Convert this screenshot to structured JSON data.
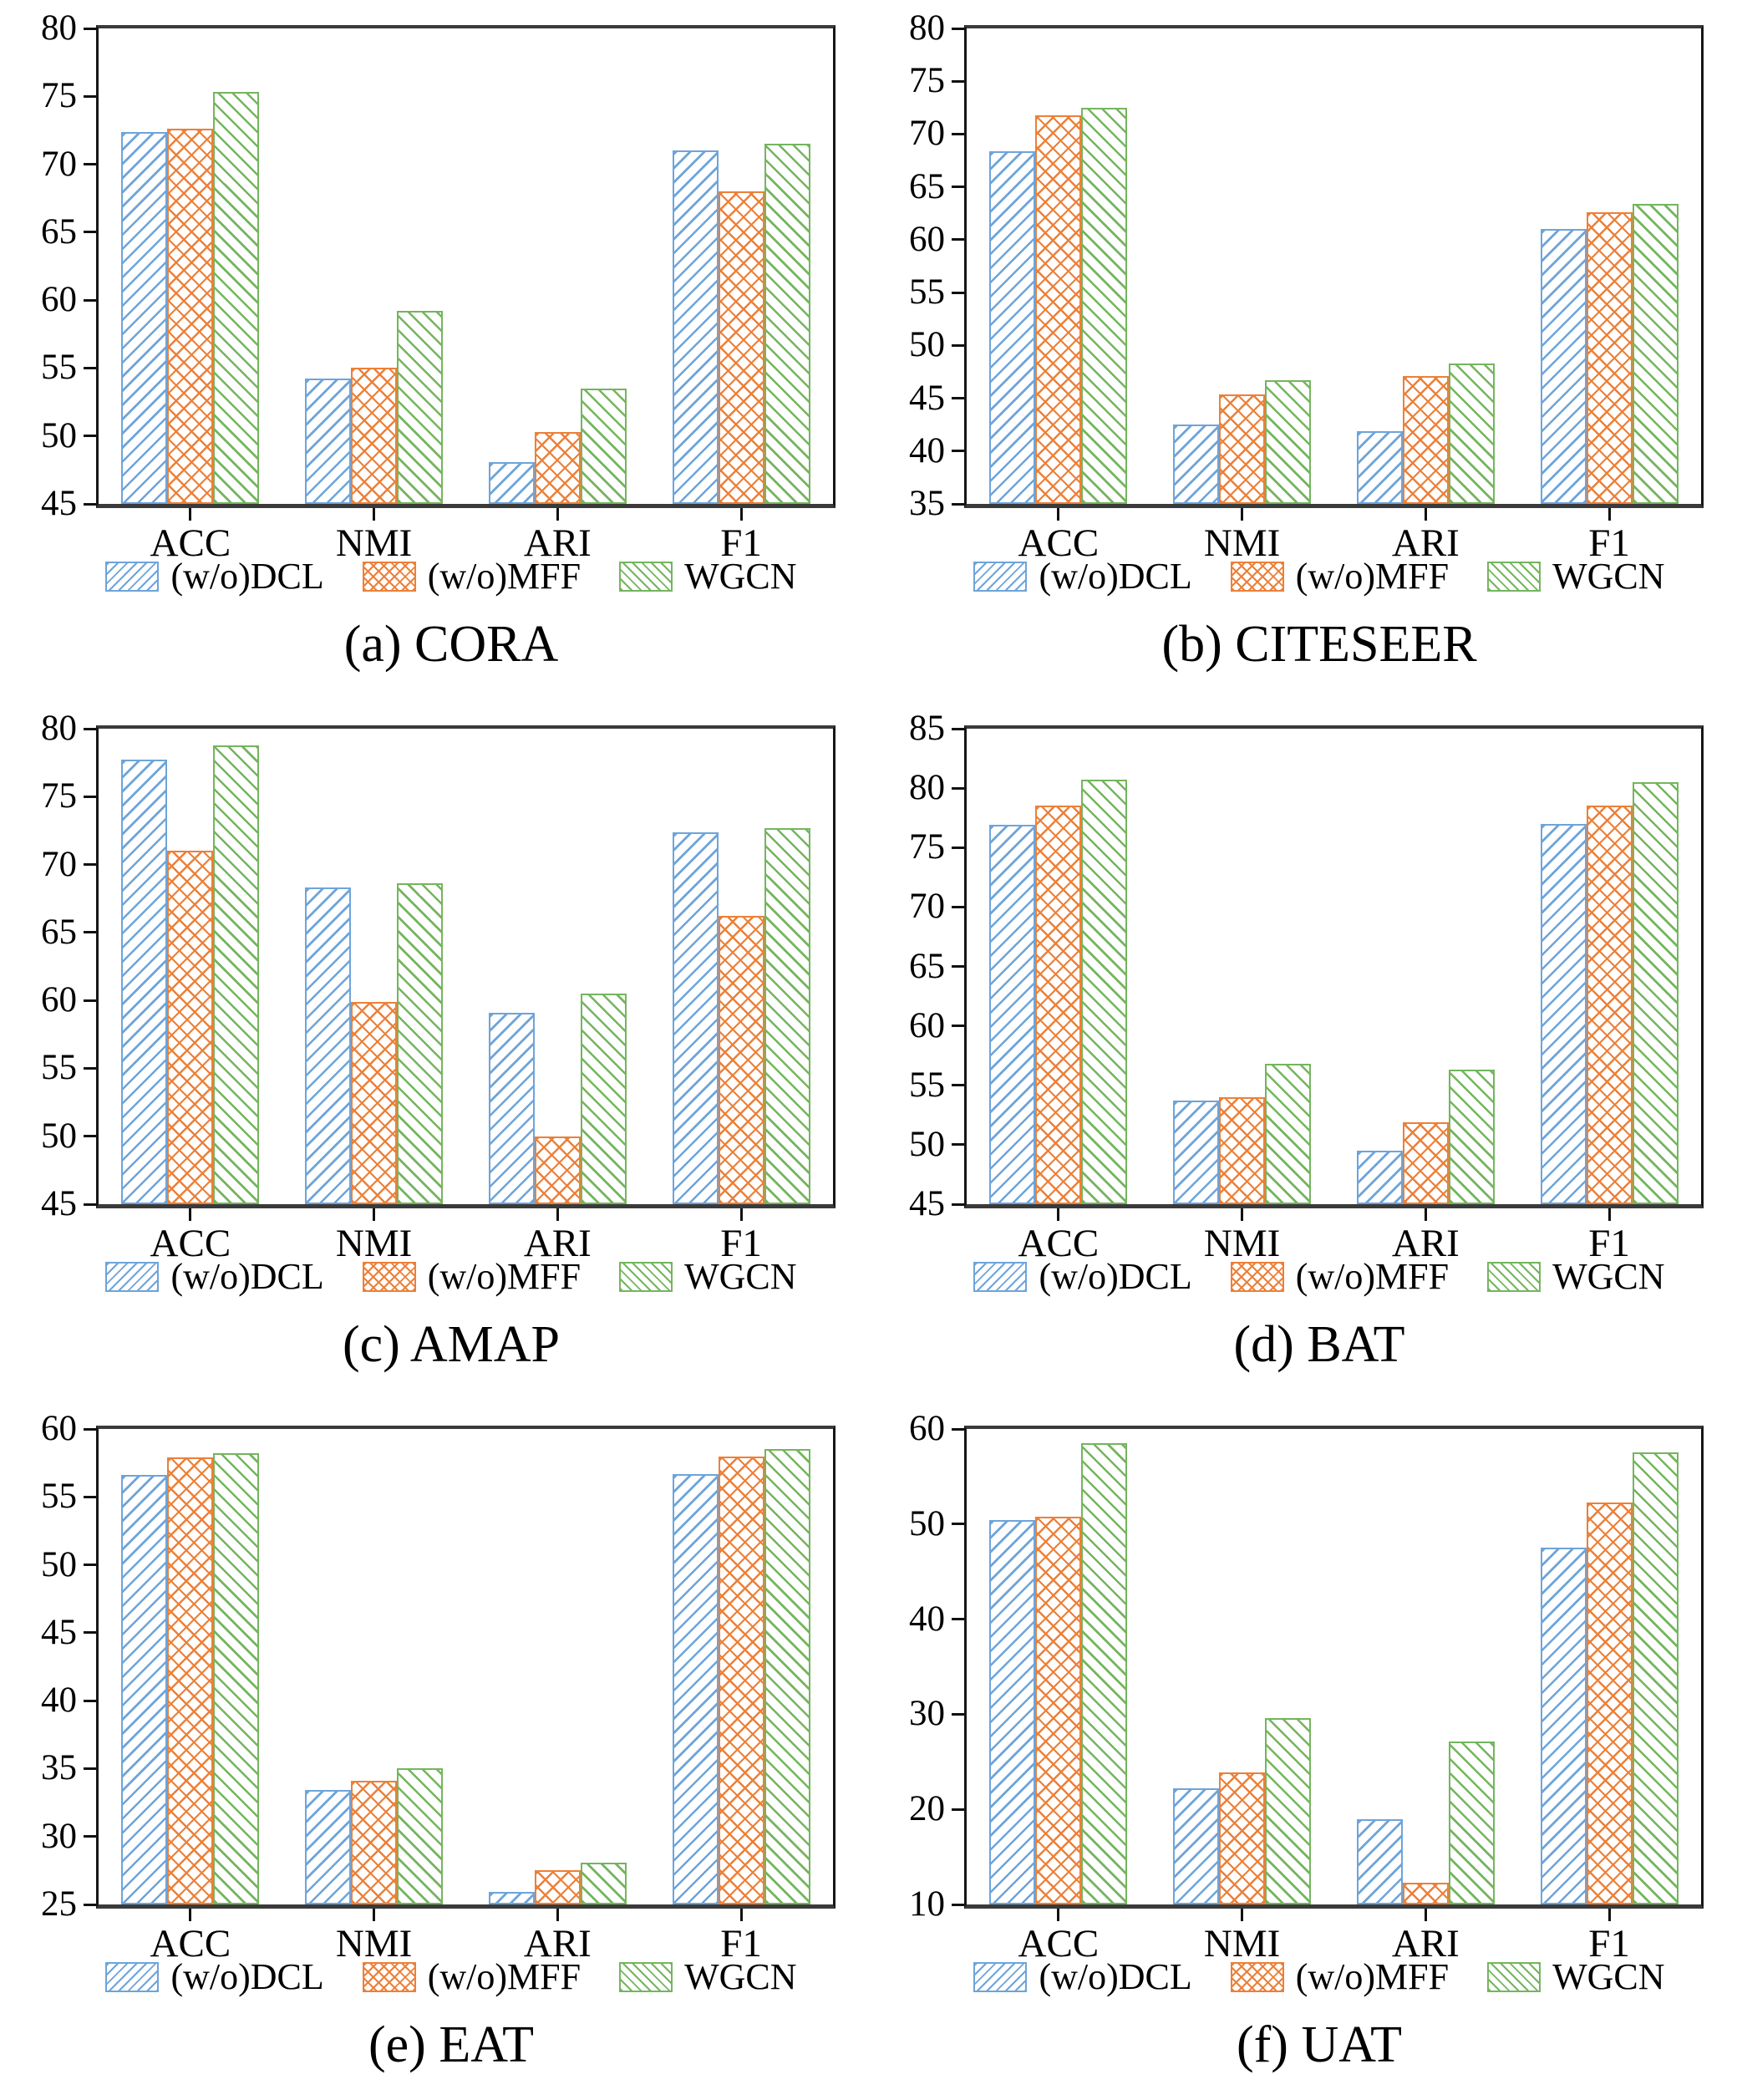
{
  "colors": {
    "dcl": "#6EA4DA",
    "mff": "#EC8038",
    "wgcn": "#74B55E"
  },
  "legend": {
    "items": [
      {
        "key": "dcl",
        "label": "(w/o)DCL"
      },
      {
        "key": "mff",
        "label": "(w/o)MFF"
      },
      {
        "key": "wgcn",
        "label": "WGCN"
      }
    ]
  },
  "chart_data": [
    {
      "type": "bar",
      "caption": "(a) CORA",
      "dataset": "CORA",
      "categories": [
        "ACC",
        "NMI",
        "ARI",
        "F1"
      ],
      "ylim": [
        45,
        80
      ],
      "ytick_step": 5,
      "grid": false,
      "legend_position": "bottom",
      "series": [
        {
          "key": "dcl",
          "name": "(w/o)DCL",
          "values": [
            72.4,
            54.2,
            48.1,
            71.0
          ]
        },
        {
          "key": "mff",
          "name": "(w/o)MFF",
          "values": [
            72.6,
            55.0,
            50.3,
            68.0
          ]
        },
        {
          "key": "wgcn",
          "name": "WGCN",
          "values": [
            75.3,
            59.2,
            53.5,
            71.5
          ]
        }
      ]
    },
    {
      "type": "bar",
      "caption": "(b) CITESEER",
      "dataset": "CITESEER",
      "categories": [
        "ACC",
        "NMI",
        "ARI",
        "F1"
      ],
      "ylim": [
        35,
        80
      ],
      "ytick_step": 5,
      "grid": false,
      "legend_position": "bottom",
      "series": [
        {
          "key": "dcl",
          "name": "(w/o)DCL",
          "values": [
            68.4,
            42.5,
            41.9,
            61.0
          ]
        },
        {
          "key": "mff",
          "name": "(w/o)MFF",
          "values": [
            71.8,
            45.4,
            47.1,
            62.6
          ]
        },
        {
          "key": "wgcn",
          "name": "WGCN",
          "values": [
            72.5,
            46.7,
            48.3,
            63.4
          ]
        }
      ]
    },
    {
      "type": "bar",
      "caption": "(c) AMAP",
      "dataset": "AMAP",
      "categories": [
        "ACC",
        "NMI",
        "ARI",
        "F1"
      ],
      "ylim": [
        45,
        80
      ],
      "ytick_step": 5,
      "grid": false,
      "legend_position": "bottom",
      "series": [
        {
          "key": "dcl",
          "name": "(w/o)DCL",
          "values": [
            77.7,
            68.3,
            59.1,
            72.4
          ]
        },
        {
          "key": "mff",
          "name": "(w/o)MFF",
          "values": [
            71.0,
            59.9,
            50.0,
            66.2
          ]
        },
        {
          "key": "wgcn",
          "name": "WGCN",
          "values": [
            78.8,
            68.6,
            60.5,
            72.7
          ]
        }
      ]
    },
    {
      "type": "bar",
      "caption": "(d) BAT",
      "dataset": "BAT",
      "categories": [
        "ACC",
        "NMI",
        "ARI",
        "F1"
      ],
      "ylim": [
        45,
        85
      ],
      "ytick_step": 5,
      "grid": false,
      "legend_position": "bottom",
      "series": [
        {
          "key": "dcl",
          "name": "(w/o)DCL",
          "values": [
            76.9,
            53.7,
            49.5,
            77.0
          ]
        },
        {
          "key": "mff",
          "name": "(w/o)MFF",
          "values": [
            78.5,
            54.0,
            51.9,
            78.5
          ]
        },
        {
          "key": "wgcn",
          "name": "WGCN",
          "values": [
            80.7,
            56.8,
            56.3,
            80.5
          ]
        }
      ]
    },
    {
      "type": "bar",
      "caption": "(e) EAT",
      "dataset": "EAT",
      "categories": [
        "ACC",
        "NMI",
        "ARI",
        "F1"
      ],
      "ylim": [
        25,
        60
      ],
      "ytick_step": 5,
      "grid": false,
      "legend_position": "bottom",
      "series": [
        {
          "key": "dcl",
          "name": "(w/o)DCL",
          "values": [
            56.6,
            33.4,
            25.9,
            56.7
          ]
        },
        {
          "key": "mff",
          "name": "(w/o)MFF",
          "values": [
            57.9,
            34.1,
            27.5,
            58.0
          ]
        },
        {
          "key": "wgcn",
          "name": "WGCN",
          "values": [
            58.2,
            35.0,
            28.1,
            58.5
          ]
        }
      ]
    },
    {
      "type": "bar",
      "caption": "(f) UAT",
      "dataset": "UAT",
      "categories": [
        "ACC",
        "NMI",
        "ARI",
        "F1"
      ],
      "ylim": [
        10,
        60
      ],
      "ytick_step": 10,
      "grid": false,
      "legend_position": "bottom",
      "series": [
        {
          "key": "dcl",
          "name": "(w/o)DCL",
          "values": [
            50.4,
            22.2,
            19.0,
            47.5
          ]
        },
        {
          "key": "mff",
          "name": "(w/o)MFF",
          "values": [
            50.8,
            23.9,
            12.3,
            52.3
          ]
        },
        {
          "key": "wgcn",
          "name": "WGCN",
          "values": [
            58.5,
            29.6,
            27.1,
            57.5
          ]
        }
      ]
    }
  ]
}
